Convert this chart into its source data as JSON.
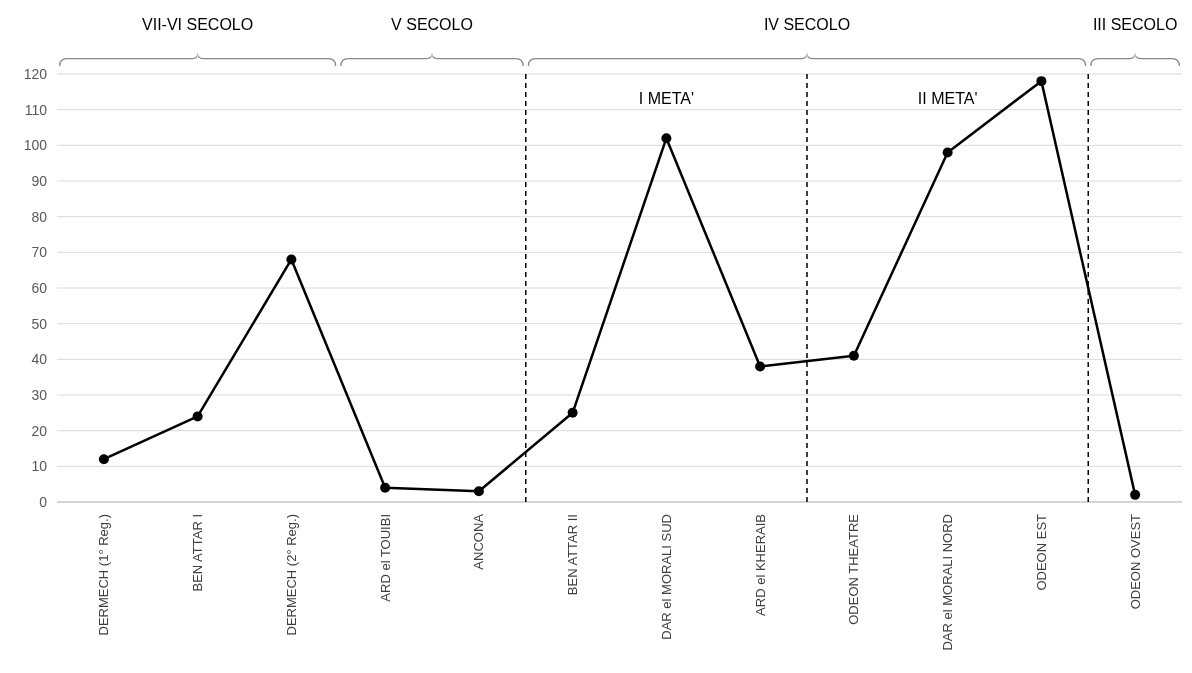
{
  "chart_data": {
    "type": "line",
    "categories": [
      "DERMECH (1° Reg.)",
      "BEN ATTAR I",
      "DERMECH (2° Reg.)",
      "ARD el TOUIBI",
      "ANCONA",
      "BEN ATTAR II",
      "DAR el MORALI SUD",
      "ARD el KHERAIB",
      "ODEON THEATRE",
      "DAR el MORALI NORD",
      "ODEON EST",
      "ODEON OVEST"
    ],
    "series": [
      {
        "color": "#000000",
        "values": [
          12,
          24,
          68,
          4,
          3,
          25,
          102,
          38,
          41,
          98,
          118,
          2
        ]
      }
    ],
    "ylim": [
      0,
      120
    ],
    "yticks": [
      0,
      10,
      20,
      30,
      40,
      50,
      60,
      70,
      80,
      90,
      100,
      110,
      120
    ],
    "grid": "y",
    "marker": "circle",
    "line_style": "solid",
    "annotations": [
      "VII-VI SECOLO",
      "V SECOLO",
      "IV SECOLO",
      "III SECOLO",
      "I META'",
      "II META'"
    ]
  }
}
